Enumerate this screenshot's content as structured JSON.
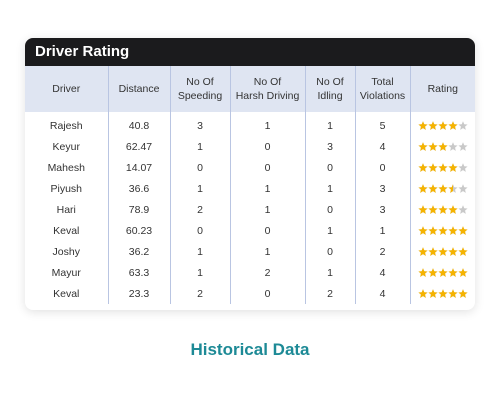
{
  "header": {
    "title": "Driver Rating"
  },
  "table": {
    "columns": [
      "Driver",
      "Distance",
      "No Of\nSpeeding",
      "No Of\nHarsh Driving",
      "No Of\nIdling",
      "Total\nViolations",
      "Rating"
    ],
    "rows": [
      [
        "Rajesh",
        40.8,
        3,
        1,
        1,
        5,
        4
      ],
      [
        "Keyur",
        62.47,
        1,
        0,
        3,
        4,
        3
      ],
      [
        "Mahesh",
        14.07,
        0,
        0,
        0,
        0,
        4
      ],
      [
        "Piyush",
        36.6,
        1,
        1,
        1,
        3,
        3.5
      ],
      [
        "Hari",
        78.9,
        2,
        1,
        0,
        3,
        4
      ],
      [
        "Keval",
        60.23,
        0,
        0,
        1,
        1,
        5
      ],
      [
        "Joshy",
        36.2,
        1,
        1,
        0,
        2,
        5
      ],
      [
        "Mayur",
        63.3,
        1,
        2,
        1,
        4,
        5
      ],
      [
        "Keval",
        23.3,
        2,
        0,
        2,
        4,
        5
      ]
    ],
    "rating_max": 5
  },
  "caption": "Historical Data"
}
